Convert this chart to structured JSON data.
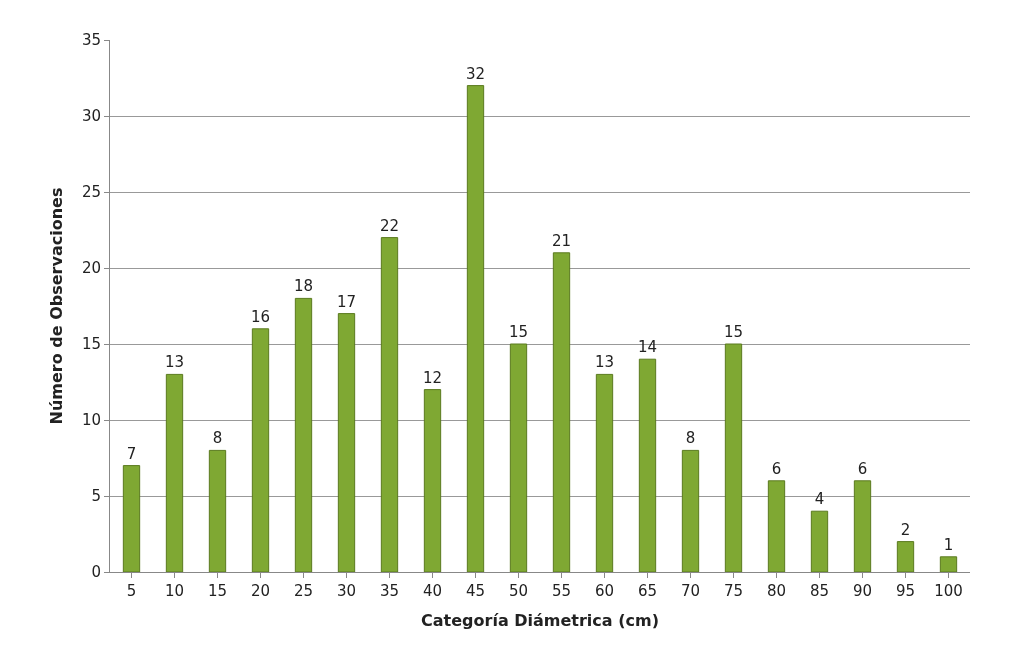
{
  "chart_data": {
    "type": "bar",
    "xlabel": "Categoría Diámetrica (cm)",
    "ylabel": "Número de Observaciones",
    "categories": [
      "5",
      "10",
      "15",
      "20",
      "25",
      "30",
      "35",
      "40",
      "45",
      "50",
      "55",
      "60",
      "65",
      "70",
      "75",
      "80",
      "85",
      "90",
      "95",
      "100"
    ],
    "values": [
      7,
      13,
      8,
      16,
      18,
      17,
      22,
      12,
      32,
      15,
      21,
      13,
      14,
      8,
      15,
      6,
      4,
      6,
      2,
      1
    ],
    "color": "#7fa833",
    "ylim": [
      0,
      35
    ],
    "yticks": [
      0,
      5,
      10,
      15,
      20,
      25,
      30,
      35
    ],
    "grid": "y",
    "data_labels": true
  }
}
